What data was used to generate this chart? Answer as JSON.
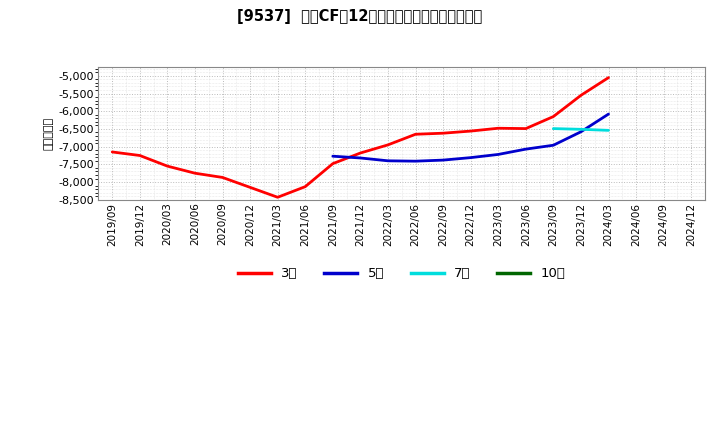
{
  "title": "[9537]  投賄CFだ12か月移動合計の平均値の推移",
  "ylabel": "（百万円）",
  "ylim": [
    -8500,
    -4750
  ],
  "yticks": [
    -8500,
    -8000,
    -7500,
    -7000,
    -6500,
    -6000,
    -5500,
    -5000
  ],
  "background_color": "#ffffff",
  "plot_bg_color": "#ffffff",
  "grid_color": "#aaaaaa",
  "series": {
    "3year": {
      "color": "#ff0000",
      "label": "3年",
      "x": [
        "2019/09",
        "2019/12",
        "2020/03",
        "2020/06",
        "2020/09",
        "2020/12",
        "2021/03",
        "2021/06",
        "2021/09",
        "2021/12",
        "2022/03",
        "2022/06",
        "2022/09",
        "2022/12",
        "2023/03",
        "2023/06",
        "2023/09",
        "2023/12",
        "2024/03"
      ],
      "y": [
        -7150,
        -7250,
        -7550,
        -7750,
        -7870,
        -8150,
        -8430,
        -8130,
        -7480,
        -7180,
        -6950,
        -6650,
        -6620,
        -6560,
        -6480,
        -6490,
        -6150,
        -5550,
        -5050
      ]
    },
    "5year": {
      "color": "#0000cc",
      "label": "5年",
      "x": [
        "2021/09",
        "2021/12",
        "2022/03",
        "2022/06",
        "2022/09",
        "2022/12",
        "2023/03",
        "2023/06",
        "2023/09",
        "2023/12",
        "2024/03"
      ],
      "y": [
        -7270,
        -7320,
        -7400,
        -7410,
        -7380,
        -7310,
        -7220,
        -7070,
        -6960,
        -6580,
        -6080
      ]
    },
    "7year": {
      "color": "#00dddd",
      "label": "7年",
      "x": [
        "2023/09",
        "2023/12",
        "2024/03"
      ],
      "y": [
        -6490,
        -6510,
        -6540
      ]
    },
    "10year": {
      "color": "#006600",
      "label": "10年",
      "x": [],
      "y": []
    }
  },
  "x_labels": [
    "2019/09",
    "2019/12",
    "2020/03",
    "2020/06",
    "2020/09",
    "2020/12",
    "2021/03",
    "2021/06",
    "2021/09",
    "2021/12",
    "2022/03",
    "2022/06",
    "2022/09",
    "2022/12",
    "2023/03",
    "2023/06",
    "2023/09",
    "2023/12",
    "2024/03",
    "2024/06",
    "2024/09",
    "2024/12"
  ],
  "legend_items": [
    {
      "label": "3年",
      "color": "#ff0000"
    },
    {
      "label": "5年",
      "color": "#0000cc"
    },
    {
      "label": "7年",
      "color": "#00dddd"
    },
    {
      "label": "10年",
      "color": "#006600"
    }
  ]
}
